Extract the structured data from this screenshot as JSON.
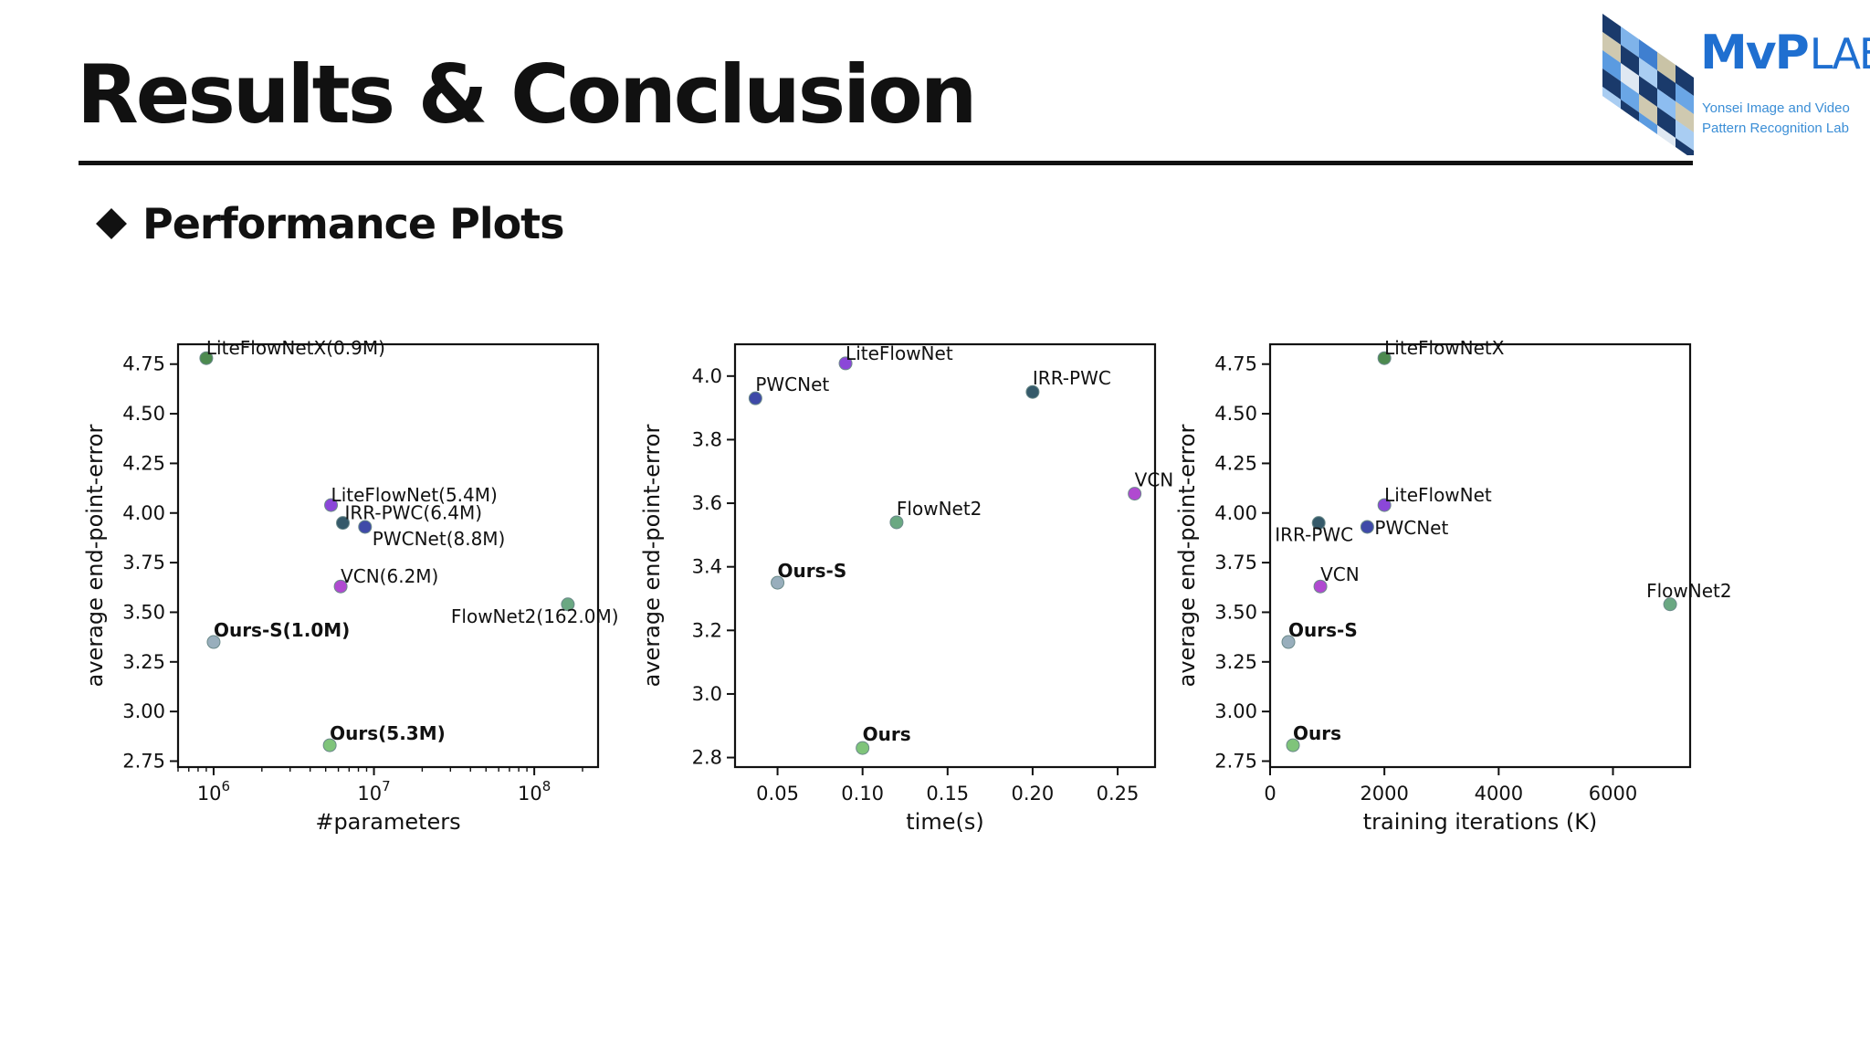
{
  "slide": {
    "title": "Results & Conclusion",
    "section_title": "Performance Plots"
  },
  "logo": {
    "word_main": "MvP",
    "word_lab": "LAB",
    "line1": "Yonsei Image and Video",
    "line2": "Pattern Recognition Lab"
  },
  "colors": {
    "accent": "#1f6fd0"
  },
  "chart_data": [
    {
      "type": "scatter",
      "xlabel": "#parameters",
      "ylabel": "average end-point-error",
      "xscale": "log",
      "xlim": [
        600000,
        250000000
      ],
      "ylim": [
        2.72,
        4.85
      ],
      "xticks": [
        1000000,
        10000000,
        100000000
      ],
      "xtick_labels": [
        {
          "base": "10",
          "exp": "6"
        },
        {
          "base": "10",
          "exp": "7"
        },
        {
          "base": "10",
          "exp": "8"
        }
      ],
      "yticks": [
        2.75,
        3.0,
        3.25,
        3.5,
        3.75,
        4.0,
        4.25,
        4.5,
        4.75
      ],
      "ytick_labels": [
        "2.75",
        "3.00",
        "3.25",
        "3.50",
        "3.75",
        "4.00",
        "4.25",
        "4.50",
        "4.75"
      ],
      "points": [
        {
          "label": "LiteFlowNetX(0.9M)",
          "x": 900000,
          "y": 4.78,
          "color": "#4d8a4f",
          "bold": false
        },
        {
          "label": "LiteFlowNet(5.4M)",
          "x": 5400000,
          "y": 4.04,
          "color": "#8b47d8",
          "bold": false
        },
        {
          "label": "IRR-PWC(6.4M)",
          "x": 6400000,
          "y": 3.95,
          "color": "#355a6a",
          "bold": false
        },
        {
          "label": "PWCNet(8.8M)",
          "x": 8800000,
          "y": 3.93,
          "color": "#3f4aa8",
          "bold": false
        },
        {
          "label": "VCN(6.2M)",
          "x": 6200000,
          "y": 3.63,
          "color": "#b04ad0",
          "bold": false
        },
        {
          "label": "FlowNet2(162.0M)",
          "x": 162000000,
          "y": 3.54,
          "color": "#6aa882",
          "bold": false
        },
        {
          "label": "Ours-S(1.0M)",
          "x": 1000000,
          "y": 3.35,
          "color": "#98aebc",
          "bold": true
        },
        {
          "label": "Ours(5.3M)",
          "x": 5300000,
          "y": 2.83,
          "color": "#7fc47a",
          "bold": true
        }
      ]
    },
    {
      "type": "scatter",
      "xlabel": "time(s)",
      "ylabel": "average end-point-error",
      "xscale": "linear",
      "xlim": [
        0.025,
        0.272
      ],
      "ylim": [
        2.77,
        4.1
      ],
      "xticks": [
        0.05,
        0.1,
        0.15,
        0.2,
        0.25
      ],
      "xtick_labels": [
        "0.05",
        "0.10",
        "0.15",
        "0.20",
        "0.25"
      ],
      "yticks": [
        2.8,
        3.0,
        3.2,
        3.4,
        3.6,
        3.8,
        4.0
      ],
      "ytick_labels": [
        "2.8",
        "3.0",
        "3.2",
        "3.4",
        "3.6",
        "3.8",
        "4.0"
      ],
      "points": [
        {
          "label": "LiteFlowNet",
          "x": 0.09,
          "y": 4.04,
          "color": "#8b47d8",
          "bold": false
        },
        {
          "label": "PWCNet",
          "x": 0.037,
          "y": 3.93,
          "color": "#3f4aa8",
          "bold": false
        },
        {
          "label": "IRR-PWC",
          "x": 0.2,
          "y": 3.95,
          "color": "#355a6a",
          "bold": false
        },
        {
          "label": "VCN",
          "x": 0.26,
          "y": 3.63,
          "color": "#b04ad0",
          "bold": false
        },
        {
          "label": "FlowNet2",
          "x": 0.12,
          "y": 3.54,
          "color": "#6aa882",
          "bold": false
        },
        {
          "label": "Ours-S",
          "x": 0.05,
          "y": 3.35,
          "color": "#98aebc",
          "bold": true
        },
        {
          "label": "Ours",
          "x": 0.1,
          "y": 2.83,
          "color": "#7fc47a",
          "bold": true
        }
      ]
    },
    {
      "type": "scatter",
      "xlabel": "training iterations (K)",
      "ylabel": "average end-point-error",
      "xscale": "linear",
      "xlim": [
        0,
        7350
      ],
      "ylim": [
        2.72,
        4.85
      ],
      "xticks": [
        0,
        2000,
        4000,
        6000
      ],
      "xtick_labels": [
        "0",
        "2000",
        "4000",
        "6000"
      ],
      "yticks": [
        2.75,
        3.0,
        3.25,
        3.5,
        3.75,
        4.0,
        4.25,
        4.5,
        4.75
      ],
      "ytick_labels": [
        "2.75",
        "3.00",
        "3.25",
        "3.50",
        "3.75",
        "4.00",
        "4.25",
        "4.50",
        "4.75"
      ],
      "points": [
        {
          "label": "LiteFlowNetX",
          "x": 2000,
          "y": 4.78,
          "color": "#4d8a4f",
          "bold": false
        },
        {
          "label": "LiteFlowNet",
          "x": 2000,
          "y": 4.04,
          "color": "#8b47d8",
          "bold": false
        },
        {
          "label": "IRR-PWC",
          "x": 850,
          "y": 3.95,
          "color": "#355a6a",
          "bold": false
        },
        {
          "label": "PWCNet",
          "x": 1700,
          "y": 3.93,
          "color": "#3f4aa8",
          "bold": false
        },
        {
          "label": "VCN",
          "x": 880,
          "y": 3.63,
          "color": "#b04ad0",
          "bold": false
        },
        {
          "label": "FlowNet2",
          "x": 7000,
          "y": 3.54,
          "color": "#6aa882",
          "bold": false
        },
        {
          "label": "Ours-S",
          "x": 320,
          "y": 3.35,
          "color": "#98aebc",
          "bold": true
        },
        {
          "label": "Ours",
          "x": 400,
          "y": 2.83,
          "color": "#7fc47a",
          "bold": true
        }
      ]
    }
  ]
}
